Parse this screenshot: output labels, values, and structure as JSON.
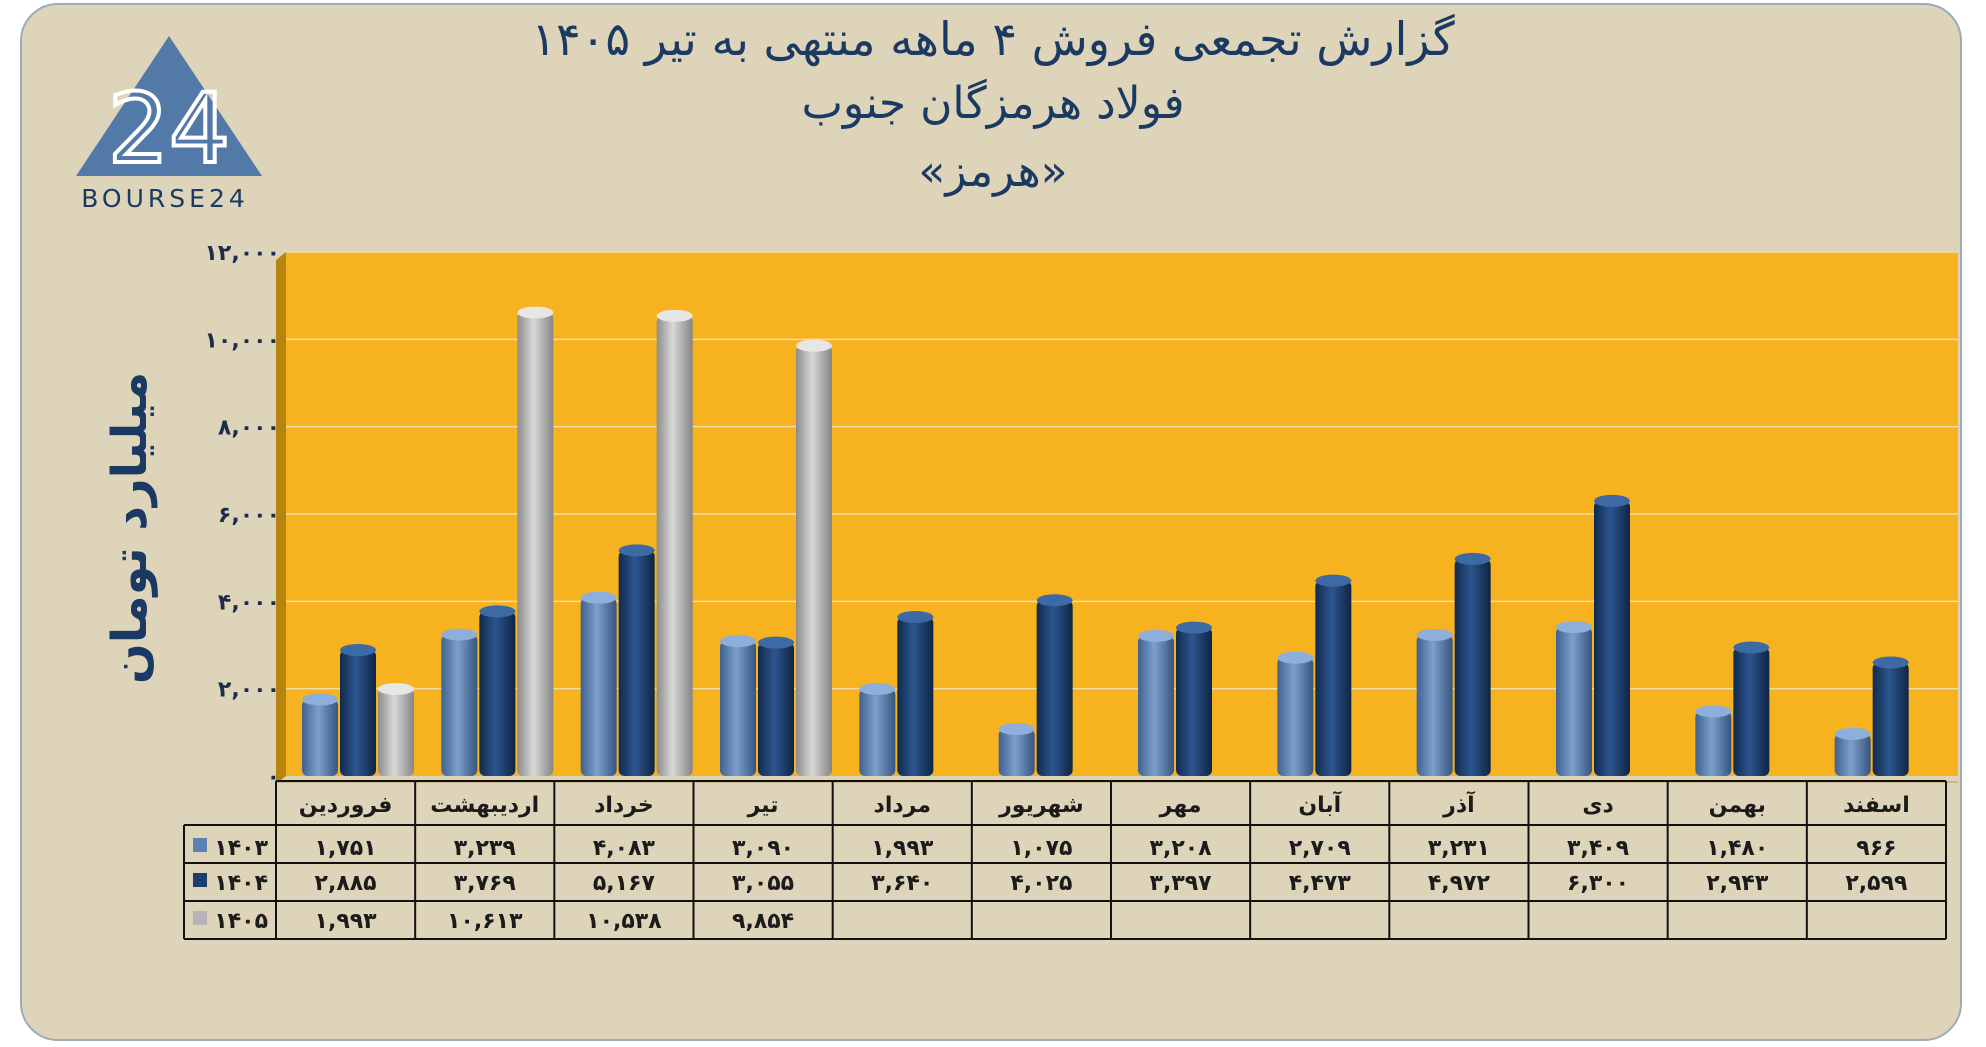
{
  "header": {
    "title_line1": "گزارش تجمعی فروش ۴ ماهه منتهی به تیر ۱۴۰۵",
    "title_line2": "فولاد هرمزگان جنوب",
    "title_line3": "«هرمز»"
  },
  "logo": {
    "number": "24",
    "text": "BOURSE24"
  },
  "colors": {
    "card_bg": "#ddd4b9",
    "plot_bg": "#f7b21f",
    "series_1403": "#5b80b4",
    "series_1404": "#1c3e6e",
    "series_1405": "#b4b4b4",
    "title": "#1b3a63"
  },
  "chart_data": {
    "type": "bar",
    "ylabel": "میلیارد تومان",
    "ylim": [
      0,
      12000
    ],
    "ytick_labels": [
      "۰",
      "۲,۰۰۰",
      "۴,۰۰۰",
      "۶,۰۰۰",
      "۸,۰۰۰",
      "۱۰,۰۰۰",
      "۱۲,۰۰۰"
    ],
    "yticks": [
      0,
      2000,
      4000,
      6000,
      8000,
      10000,
      12000
    ],
    "grid": true,
    "legend": "table-left",
    "categories": [
      "فروردین",
      "اردیبهشت",
      "خرداد",
      "تیر",
      "مرداد",
      "شهریور",
      "مهر",
      "آبان",
      "آذر",
      "دی",
      "بهمن",
      "اسفند"
    ],
    "series": [
      {
        "name": "۱۴۰۳",
        "values": [
          1751,
          3239,
          4083,
          3090,
          1993,
          1075,
          3208,
          2709,
          3231,
          3409,
          1480,
          966
        ],
        "labels": [
          "۱,۷۵۱",
          "۳,۲۳۹",
          "۴,۰۸۳",
          "۳,۰۹۰",
          "۱,۹۹۳",
          "۱,۰۷۵",
          "۳,۲۰۸",
          "۲,۷۰۹",
          "۳,۲۳۱",
          "۳,۴۰۹",
          "۱,۴۸۰",
          "۹۶۶"
        ]
      },
      {
        "name": "۱۴۰۴",
        "values": [
          2885,
          3769,
          5167,
          3055,
          3640,
          4025,
          3397,
          4473,
          4972,
          6300,
          2943,
          2599
        ],
        "labels": [
          "۲,۸۸۵",
          "۳,۷۶۹",
          "۵,۱۶۷",
          "۳,۰۵۵",
          "۳,۶۴۰",
          "۴,۰۲۵",
          "۳,۳۹۷",
          "۴,۴۷۳",
          "۴,۹۷۲",
          "۶,۳۰۰",
          "۲,۹۴۳",
          "۲,۵۹۹"
        ]
      },
      {
        "name": "۱۴۰۵",
        "values": [
          1993,
          10613,
          10538,
          9854,
          null,
          null,
          null,
          null,
          null,
          null,
          null,
          null
        ],
        "labels": [
          "۱,۹۹۳",
          "۱۰,۶۱۳",
          "۱۰,۵۳۸",
          "۹,۸۵۴",
          "",
          "",
          "",
          "",
          "",
          "",
          "",
          ""
        ]
      }
    ]
  }
}
